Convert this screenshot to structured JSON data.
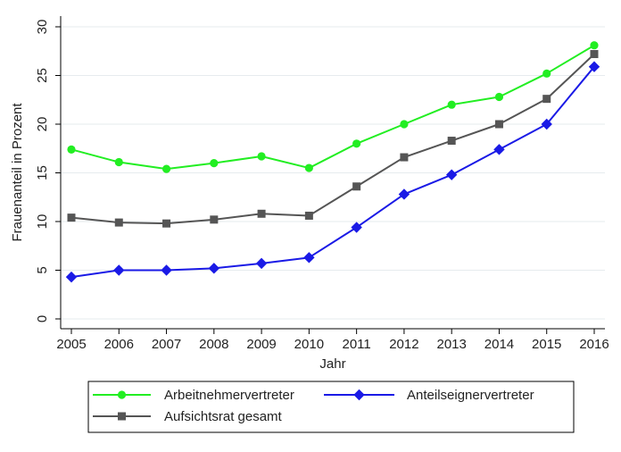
{
  "chart_data": {
    "type": "line",
    "title": "",
    "xlabel": "Jahr",
    "ylabel": "Frauenanteil in Prozent",
    "x": [
      2005,
      2006,
      2007,
      2008,
      2009,
      2010,
      2011,
      2012,
      2013,
      2014,
      2015,
      2016
    ],
    "xticks": [
      "2005",
      "2006",
      "2007",
      "2008",
      "2009",
      "2010",
      "2011",
      "2012",
      "2013",
      "2014",
      "2015",
      "2016"
    ],
    "ylim": [
      0,
      30
    ],
    "yticks": [
      0,
      5,
      10,
      15,
      20,
      25,
      30
    ],
    "grid": true,
    "legend_position": "bottom",
    "series": [
      {
        "name": "Arbeitnehmervertreter",
        "color": "#22ee22",
        "marker": "circle",
        "values": [
          17.4,
          16.1,
          15.4,
          16.0,
          16.7,
          15.5,
          18.0,
          20.0,
          22.0,
          22.8,
          25.2,
          28.1
        ]
      },
      {
        "name": "Anteilseignervertreter",
        "color": "#1a1ae6",
        "marker": "diamond",
        "values": [
          4.3,
          5.0,
          5.0,
          5.2,
          5.7,
          6.3,
          9.4,
          12.8,
          14.8,
          17.4,
          20.0,
          25.9
        ]
      },
      {
        "name": "Aufsichtsrat gesamt",
        "color": "#555555",
        "marker": "square",
        "values": [
          10.4,
          9.9,
          9.8,
          10.2,
          10.8,
          10.6,
          13.6,
          16.6,
          18.3,
          20.0,
          22.6,
          27.2
        ]
      }
    ],
    "legend_order": [
      0,
      1,
      2
    ]
  }
}
